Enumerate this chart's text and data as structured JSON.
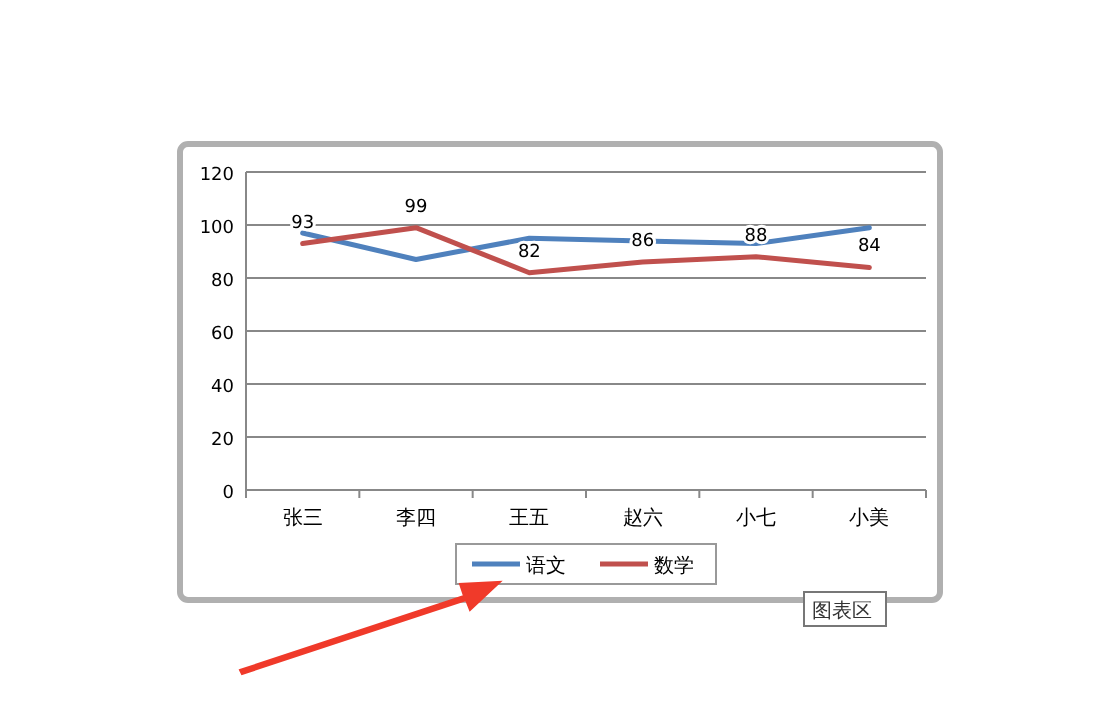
{
  "chart_data": {
    "type": "line",
    "categories": [
      "张三",
      "李四",
      "王五",
      "赵六",
      "小七",
      "小美"
    ],
    "series": [
      {
        "name": "语文",
        "color": "#4f81bd",
        "values": [
          97,
          87,
          95,
          94,
          93,
          99
        ]
      },
      {
        "name": "数学",
        "color": "#c0504d",
        "values": [
          93,
          99,
          82,
          86,
          88,
          84
        ],
        "value_labels": [
          "93",
          "99",
          "82",
          "86",
          "88",
          "84"
        ]
      }
    ],
    "ylim": [
      0,
      120
    ],
    "yticks": [
      0,
      20,
      40,
      60,
      80,
      100,
      120
    ],
    "grid": "y",
    "legend": "bottom",
    "annotations": [
      "图表区"
    ]
  }
}
